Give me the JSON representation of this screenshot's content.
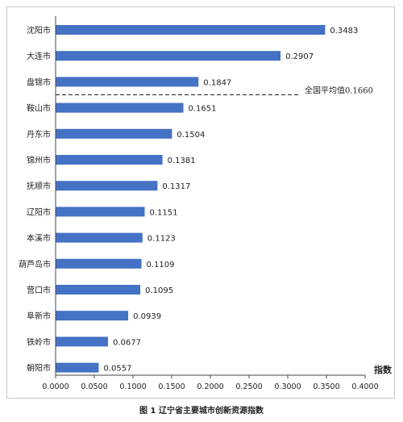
{
  "chart_data": {
    "type": "bar",
    "orientation": "horizontal",
    "categories": [
      "沈阳市",
      "大连市",
      "盘锦市",
      "鞍山市",
      "丹东市",
      "锦州市",
      "抚顺市",
      "辽阳市",
      "本溪市",
      "葫芦岛市",
      "营口市",
      "阜新市",
      "铁岭市",
      "朝阳市"
    ],
    "values": [
      0.3483,
      0.2907,
      0.1847,
      0.1651,
      0.1504,
      0.1381,
      0.1317,
      0.1151,
      0.1123,
      0.1109,
      0.1095,
      0.0939,
      0.0677,
      0.0557
    ],
    "value_labels": [
      "0.3483",
      "0.2907",
      "0.1847",
      "0.1651",
      "0.1504",
      "0.1381",
      "0.1317",
      "0.1151",
      "0.1123",
      "0.1109",
      "0.1095",
      "0.0939",
      "0.0677",
      "0.0557"
    ],
    "xlim": [
      0,
      0.4
    ],
    "x_ticks": [
      "0.0000",
      "0.0500",
      "0.1000",
      "0.1500",
      "0.2000",
      "0.2500",
      "0.3000",
      "0.3500",
      "0.4000"
    ],
    "xlabel": "指数",
    "ylabel": "",
    "grid": false,
    "bar_color": "#4472c4",
    "reference_line": {
      "label": "全国平均值0.1660",
      "value": 0.166,
      "style": "dashed",
      "between_categories": [
        "盘锦市",
        "鞍山市"
      ]
    }
  },
  "caption": "图 1  辽宁省主要城市创新资源指数"
}
